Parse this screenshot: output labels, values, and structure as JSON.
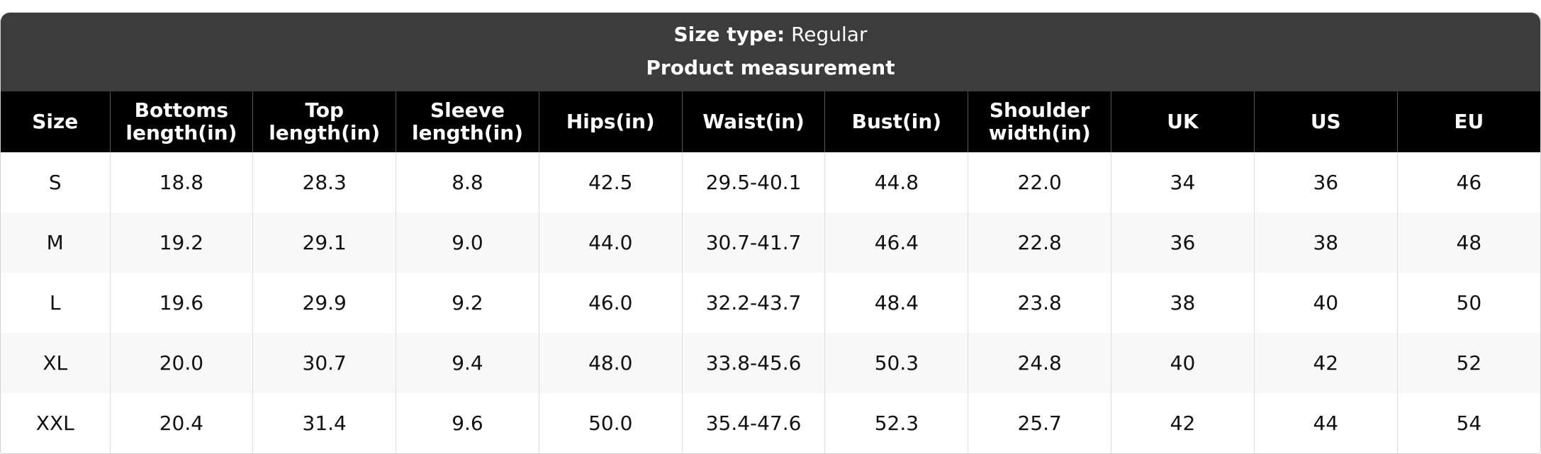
{
  "header": {
    "size_type_label": "Size type:",
    "size_type_value": "Regular",
    "title": "Product measurement"
  },
  "table": {
    "columns": [
      "Size",
      "Bottoms length(in)",
      "Top length(in)",
      "Sleeve length(in)",
      "Hips(in)",
      "Waist(in)",
      "Bust(in)",
      "Shoulder width(in)",
      "UK",
      "US",
      "EU"
    ],
    "rows": [
      [
        "S",
        "18.8",
        "28.3",
        "8.8",
        "42.5",
        "29.5-40.1",
        "44.8",
        "22.0",
        "34",
        "36",
        "46"
      ],
      [
        "M",
        "19.2",
        "29.1",
        "9.0",
        "44.0",
        "30.7-41.7",
        "46.4",
        "22.8",
        "36",
        "38",
        "48"
      ],
      [
        "L",
        "19.6",
        "29.9",
        "9.2",
        "46.0",
        "32.2-43.7",
        "48.4",
        "23.8",
        "38",
        "40",
        "50"
      ],
      [
        "XL",
        "20.0",
        "30.7",
        "9.4",
        "48.0",
        "33.8-45.6",
        "50.3",
        "24.8",
        "40",
        "42",
        "52"
      ],
      [
        "XXL",
        "20.4",
        "31.4",
        "9.6",
        "50.0",
        "35.4-47.6",
        "52.3",
        "25.7",
        "42",
        "44",
        "54"
      ]
    ]
  }
}
